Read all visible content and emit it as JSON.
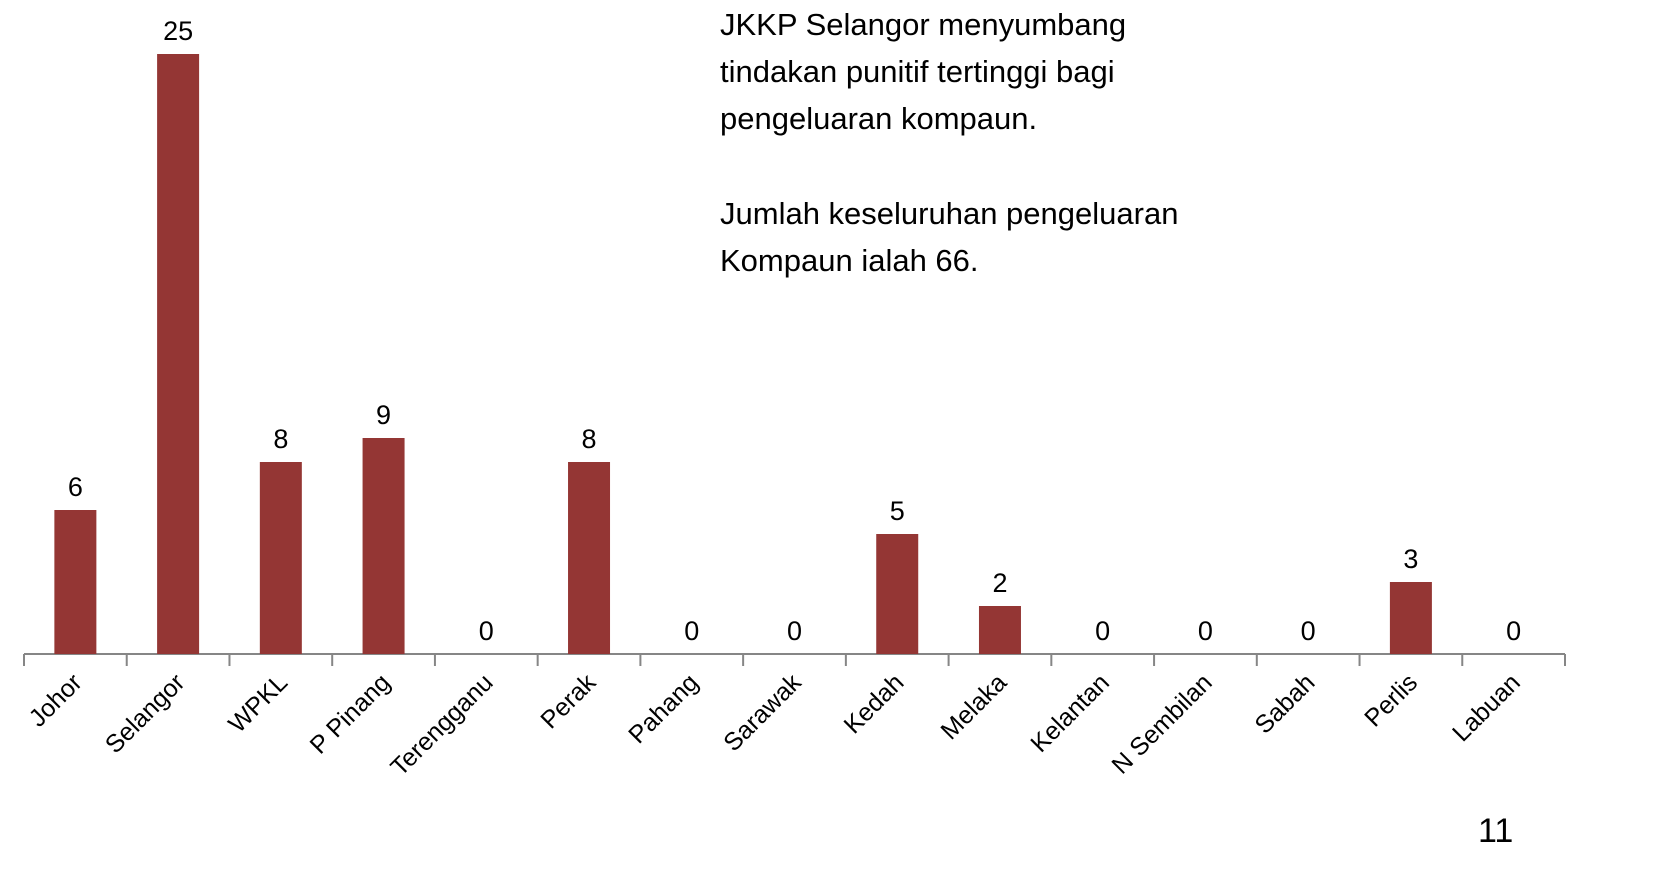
{
  "chart_data": {
    "type": "bar",
    "categories": [
      "Johor",
      "Selangor",
      "WPKL",
      "P Pinang",
      "Terengganu",
      "Perak",
      "Pahang",
      "Sarawak",
      "Kedah",
      "Melaka",
      "Kelantan",
      "N Sembilan",
      "Sabah",
      "Perlis",
      "Labuan"
    ],
    "values": [
      6,
      25,
      8,
      9,
      0,
      8,
      0,
      0,
      5,
      2,
      0,
      0,
      0,
      3,
      0
    ],
    "color": "#943634",
    "ylim": [
      0,
      25
    ],
    "annotation": [
      "JKKP Selangor menyumbang",
      "tindakan punitif tertinggi bagi",
      "pengeluaran kompaun.",
      "Jumlah keseluruhan pengeluaran",
      "Kompaun ialah 66."
    ]
  },
  "page_number": "11"
}
